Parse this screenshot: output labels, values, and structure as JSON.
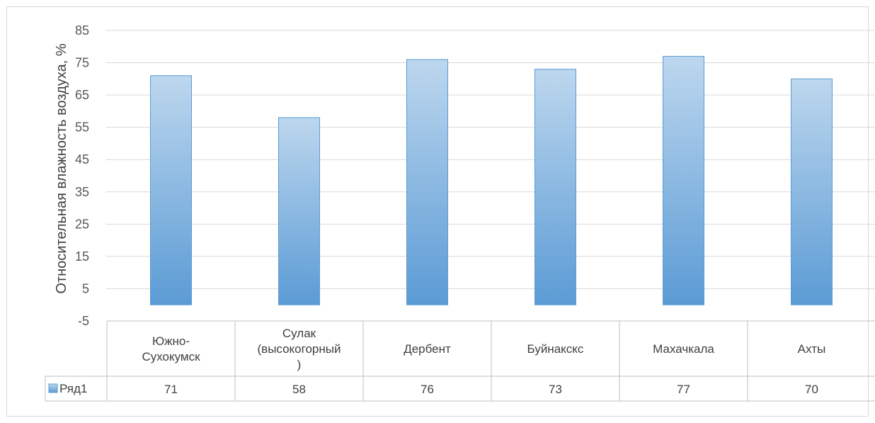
{
  "chart_data": {
    "type": "bar",
    "ylabel": "Относительная влажность воздуха, %",
    "xlabel": "",
    "ylim": [
      -5,
      85
    ],
    "yticks": [
      "85",
      "75",
      "65",
      "55",
      "45",
      "35",
      "25",
      "15",
      "5",
      "-5"
    ],
    "categories": [
      [
        "Южно-",
        "Сухокумск"
      ],
      [
        "Сулак",
        "(высокогорный",
        ")"
      ],
      [
        "Дербент"
      ],
      [
        "Буйнакскс"
      ],
      [
        "Махачкала"
      ],
      [
        "Ахты"
      ]
    ],
    "series": [
      {
        "name": "Ряд1",
        "values": [
          71,
          58,
          76,
          73,
          77,
          70
        ],
        "value_labels": [
          "71",
          "58",
          "76",
          "73",
          "77",
          "70"
        ]
      }
    ],
    "grid": true,
    "data_table": true,
    "colors": {
      "bar_top": "#bdd7ee",
      "bar_bottom": "#5b9bd5",
      "bar_edge": "#5b9bd5",
      "grid": "#d9d9d9",
      "table_border": "#bfbfbf"
    }
  }
}
